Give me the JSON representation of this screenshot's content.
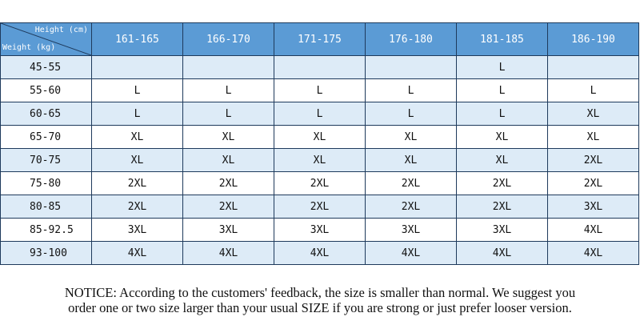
{
  "table": {
    "corner": {
      "height_label": "Height (cm)",
      "weight_label": "Weight (kg)"
    },
    "height_columns": [
      "161-165",
      "166-170",
      "171-175",
      "176-180",
      "181-185",
      "186-190"
    ],
    "rows": [
      {
        "weight": "45-55",
        "sizes": [
          "",
          "",
          "",
          "",
          "L",
          ""
        ]
      },
      {
        "weight": "55-60",
        "sizes": [
          "L",
          "L",
          "L",
          "L",
          "L",
          "L"
        ]
      },
      {
        "weight": "60-65",
        "sizes": [
          "L",
          "L",
          "L",
          "L",
          "L",
          "XL"
        ]
      },
      {
        "weight": "65-70",
        "sizes": [
          "XL",
          "XL",
          "XL",
          "XL",
          "XL",
          "XL"
        ]
      },
      {
        "weight": "70-75",
        "sizes": [
          "XL",
          "XL",
          "XL",
          "XL",
          "XL",
          "2XL"
        ]
      },
      {
        "weight": "75-80",
        "sizes": [
          "2XL",
          "2XL",
          "2XL",
          "2XL",
          "2XL",
          "2XL"
        ]
      },
      {
        "weight": "80-85",
        "sizes": [
          "2XL",
          "2XL",
          "2XL",
          "2XL",
          "2XL",
          "3XL"
        ]
      },
      {
        "weight": "85-92.5",
        "sizes": [
          "3XL",
          "3XL",
          "3XL",
          "3XL",
          "3XL",
          "4XL"
        ]
      },
      {
        "weight": "93-100",
        "sizes": [
          "4XL",
          "4XL",
          "4XL",
          "4XL",
          "4XL",
          "4XL"
        ]
      }
    ]
  },
  "notice": {
    "line1": "NOTICE: According to the customers' feedback, the size is smaller than normal. We suggest you",
    "line2": "order one or two size larger than your usual SIZE if you are strong or just prefer looser version."
  },
  "colors": {
    "header_bg": "#5b9bd5",
    "alt_row_bg": "#ddebf7",
    "border": "#1e3a5c"
  }
}
